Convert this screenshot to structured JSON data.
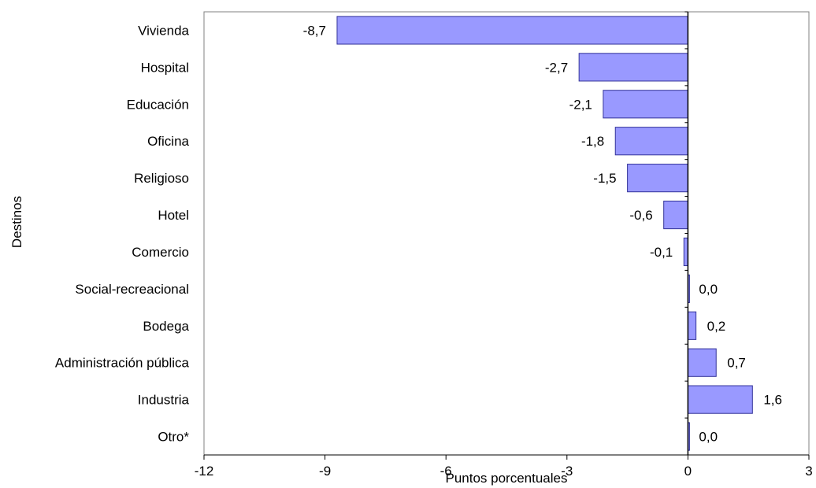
{
  "chart_data": {
    "type": "bar",
    "orientation": "horizontal",
    "title": "",
    "xlabel": "Puntos porcentuales",
    "ylabel": "Destinos",
    "xlim": [
      -12,
      3
    ],
    "xticks": [
      "-12",
      "-9",
      "-6",
      "-3",
      "0",
      "3"
    ],
    "xtick_values": [
      -12,
      -9,
      -6,
      -3,
      0,
      3
    ],
    "categories": [
      "Vivienda",
      "Hospital",
      "Educación",
      "Oficina",
      "Religioso",
      "Hotel",
      "Comercio",
      "Social-recreacional",
      "Bodega",
      "Administración pública",
      "Industria",
      "Otro*"
    ],
    "values": [
      -8.7,
      -2.7,
      -2.1,
      -1.8,
      -1.5,
      -0.6,
      -0.1,
      0.0,
      0.2,
      0.7,
      1.6,
      0.0
    ],
    "value_labels": [
      "-8,7",
      "-2,7",
      "-2,1",
      "-1,8",
      "-1,5",
      "-0,6",
      "-0,1",
      "0,0",
      "0,2",
      "0,7",
      "1,6",
      "0,0"
    ],
    "grid": false,
    "legend": "none",
    "bar_color": "#9999ff",
    "bar_border_color": "#333399"
  }
}
